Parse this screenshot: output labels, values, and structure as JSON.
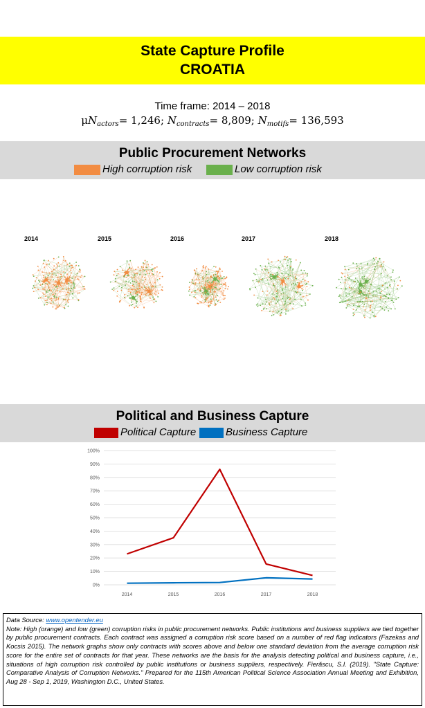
{
  "header": {
    "title_line1": "State Capture Profile",
    "title_line2": "CROATIA",
    "banner_color": "#ffff00"
  },
  "summary": {
    "timeframe": "Time frame: 2014 – 2018",
    "mu_symbol": "μ",
    "actors_label": "actors",
    "actors_value": "= 1,246;",
    "contracts_label": "contracts",
    "contracts_value": "= 8,809;",
    "motifs_label": "motifs",
    "motifs_value": "= 136,593"
  },
  "networks_section": {
    "title": "Public Procurement Networks",
    "legend": [
      {
        "label": "High corruption risk",
        "color": "#f28c42"
      },
      {
        "label": "Low corruption risk",
        "color": "#6ab04c"
      }
    ],
    "years": [
      "2014",
      "2015",
      "2016",
      "2017",
      "2018"
    ],
    "green_share": [
      0.35,
      0.35,
      0.25,
      0.7,
      0.8
    ]
  },
  "capture_section": {
    "title": "Political and Business Capture",
    "legend": [
      {
        "label": "Political Capture",
        "color": "#c00000"
      },
      {
        "label": "Business Capture",
        "color": "#0070c0"
      }
    ]
  },
  "chart_data": {
    "type": "line",
    "x": [
      "2014",
      "2015",
      "2016",
      "2017",
      "2018"
    ],
    "ylim": [
      0,
      100
    ],
    "yticks": [
      "0%",
      "10%",
      "20%",
      "30%",
      "40%",
      "50%",
      "60%",
      "70%",
      "80%",
      "90%",
      "100%"
    ],
    "grid": true,
    "series": [
      {
        "name": "Political Capture",
        "color": "#c00000",
        "values": [
          23,
          35,
          86,
          15.5,
          7
        ]
      },
      {
        "name": "Business Capture",
        "color": "#0070c0",
        "values": [
          1.2,
          1.5,
          1.7,
          5.2,
          4.3
        ]
      }
    ]
  },
  "footer": {
    "source_label": "Data Source: ",
    "source_link": "www.opentender.eu",
    "note": "Note: High (orange) and low (green) corruption risks in public procurement networks. Public institutions and business suppliers are tied together by public procurement contracts. Each contract was assigned a corruption risk score based on a number of red flag indicators (Fazekas and Kocsis 2015). The network graphs show only contracts with scores above and below one standard deviation from the average corruption risk score for the entire set of contracts for that year. These networks are the basis for the analysis detecting political and business capture, i.e., situations of high corruption risk controlled by public institutions or business suppliers, respectively. Fierăscu, S.I. (2019). \"State Capture: Comparative Analysis of Corruption Networks.\" Prepared for the 115th American Political Science Association Annual Meeting and Exhibition, Aug 28 - Sep 1, 2019, Washington D.C., United States."
  }
}
